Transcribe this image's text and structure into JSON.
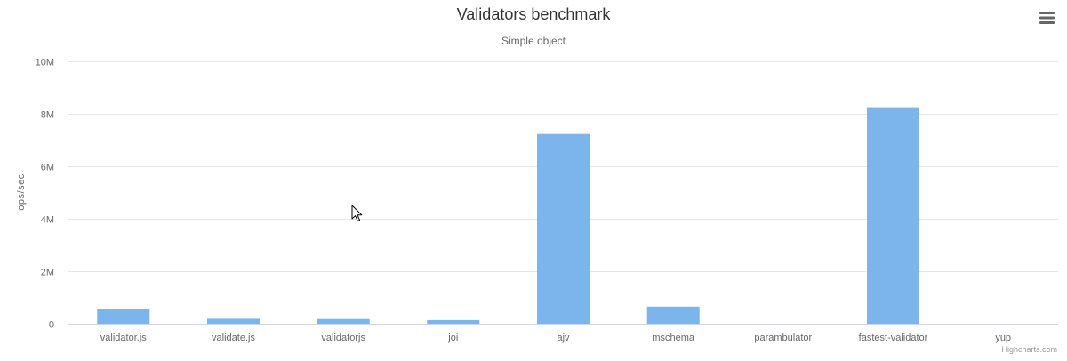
{
  "chart": {
    "menu_icon": "hamburger-menu-icon",
    "credits": "Highcharts.com",
    "cursor_icon": "mouse-pointer-icon"
  },
  "chart_data": {
    "type": "bar",
    "title": "Validators benchmark",
    "subtitle": "Simple object",
    "ylabel": "ops/sec",
    "xlabel": "",
    "categories": [
      "validator.js",
      "validate.js",
      "validatorjs",
      "joi",
      "ajv",
      "mschema",
      "parambulator",
      "fastest-validator",
      "yup"
    ],
    "values": [
      560000,
      190000,
      180000,
      140000,
      7230000,
      650000,
      0,
      8250000,
      0
    ],
    "ylim": [
      0,
      10000000
    ],
    "yticks": [
      0,
      2000000,
      4000000,
      6000000,
      8000000,
      10000000
    ],
    "ytick_labels": [
      "0",
      "2M",
      "4M",
      "6M",
      "8M",
      "10M"
    ],
    "grid": true,
    "legend": "none",
    "bar_color": "#7cb5ec"
  }
}
